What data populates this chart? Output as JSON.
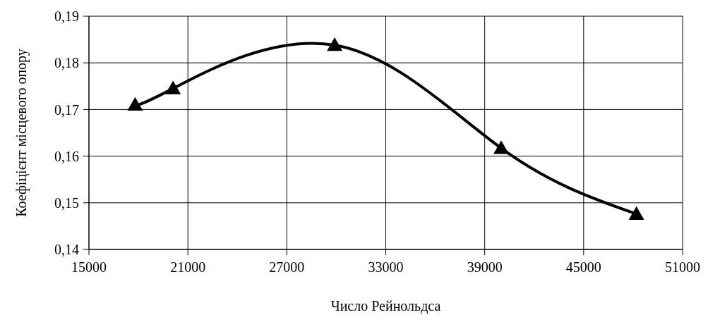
{
  "chart_data": {
    "type": "line",
    "xlabel": "Число Рейнольдса",
    "ylabel": "Коефіцієнт місцевого опору",
    "x": [
      17800,
      20100,
      29900,
      40000,
      48200
    ],
    "series": [
      {
        "color": "#000000",
        "values": [
          0.171,
          0.1745,
          0.1838,
          0.1617,
          0.1476
        ]
      }
    ],
    "xlim": [
      15000,
      51000
    ],
    "xticks": [
      15000,
      21000,
      27000,
      33000,
      39000,
      45000,
      51000
    ],
    "ylim": [
      0.14,
      0.19
    ],
    "yticks": [
      {
        "value": 0.14,
        "label": "0,14"
      },
      {
        "value": 0.15,
        "label": "0,15"
      },
      {
        "value": 0.16,
        "label": "0,16"
      },
      {
        "value": 0.17,
        "label": "0,17"
      },
      {
        "value": 0.18,
        "label": "0,18"
      },
      {
        "value": 0.19,
        "label": "0,19"
      }
    ],
    "grid": true,
    "marker": "triangle",
    "line_style": "solid"
  }
}
